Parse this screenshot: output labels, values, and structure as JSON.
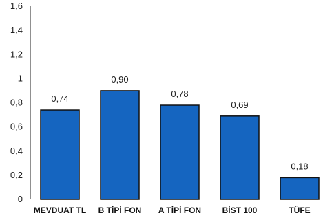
{
  "chart_data": {
    "type": "bar",
    "categories": [
      "MEVDUAT TL",
      "B TİPİ FON",
      "A TİPİ FON",
      "BİST 100",
      "TÜFE"
    ],
    "values": [
      0.74,
      0.9,
      0.78,
      0.69,
      0.18
    ],
    "value_labels": [
      "0,74",
      "0,90",
      "0,78",
      "0,69",
      "0,18"
    ],
    "yticks": [
      0,
      0.2,
      0.4,
      0.6,
      0.8,
      1,
      1.2,
      1.4,
      1.6
    ],
    "ytick_labels": [
      "0",
      "0,2",
      "0,4",
      "0,6",
      "0,8",
      "1",
      "1,2",
      "1,4",
      "1,6"
    ],
    "ylim": [
      0,
      1.6
    ],
    "title": "",
    "xlabel": "",
    "ylabel": "",
    "grid": false,
    "colors": {
      "bar_fill": "#1565c0",
      "bar_stroke": "#111111",
      "axis": "#222222"
    }
  }
}
